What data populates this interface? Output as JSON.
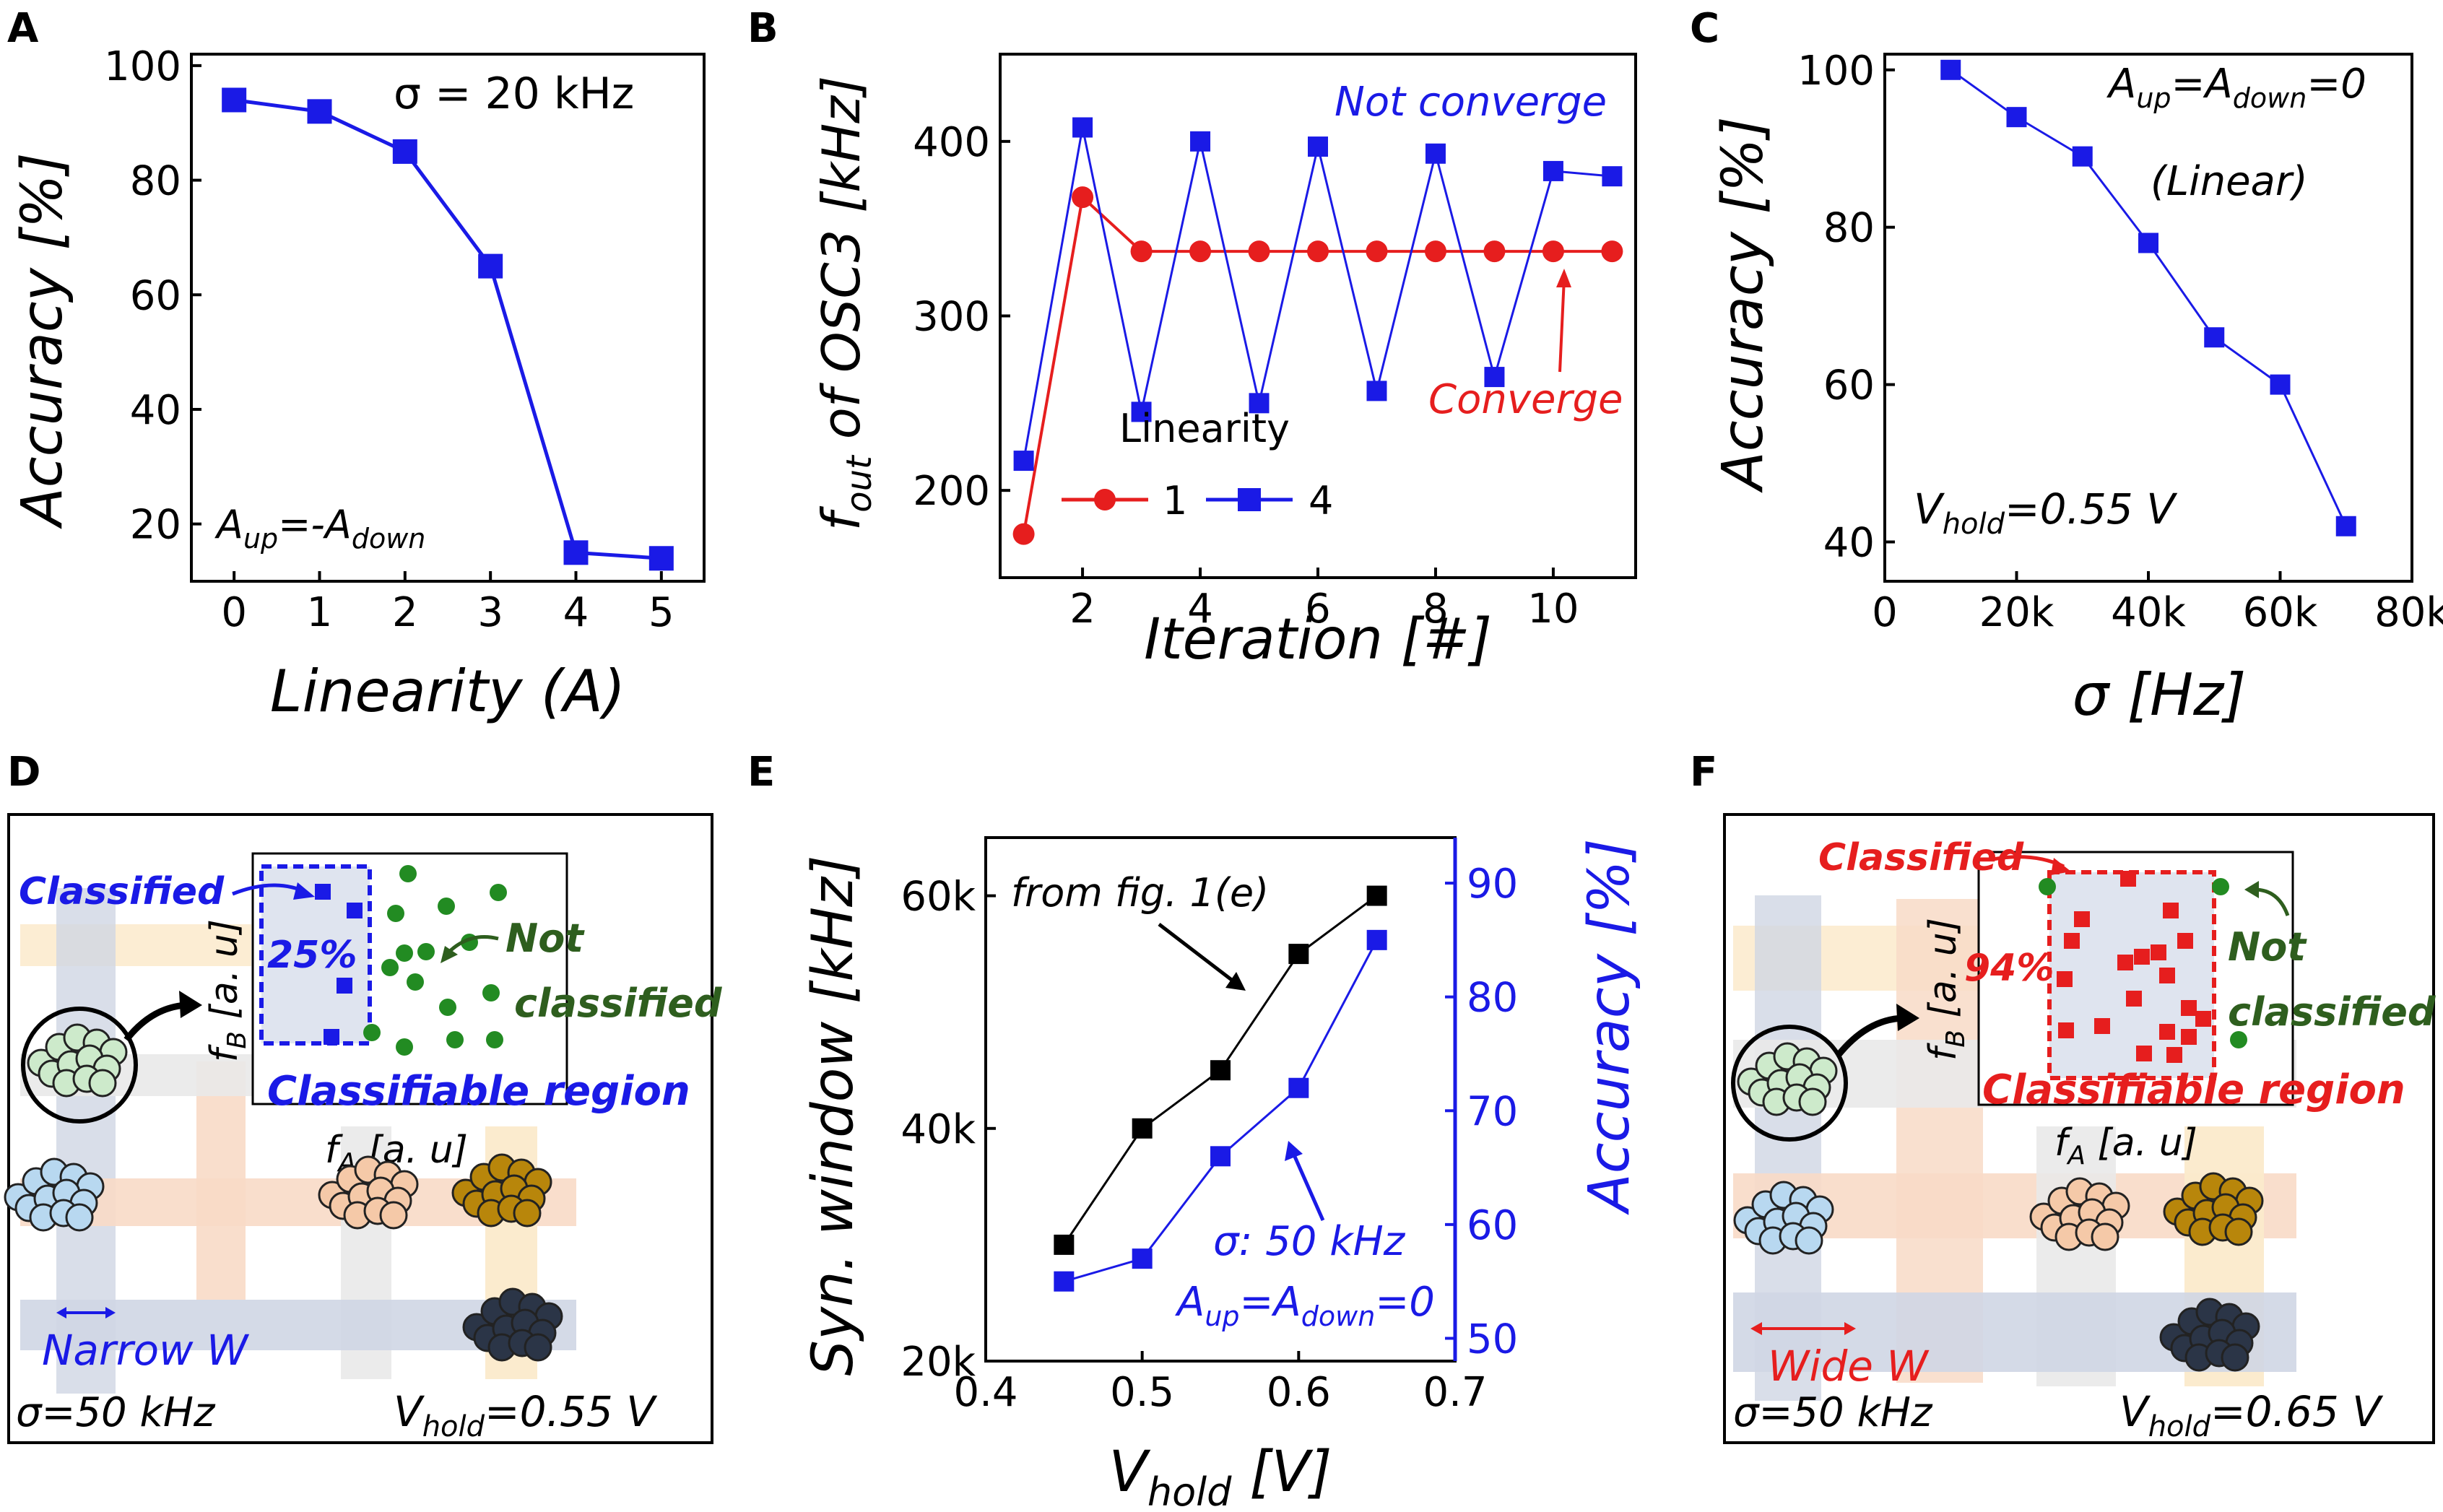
{
  "panels": {
    "a": {
      "letter": "A",
      "note": "σ = 20 kHz",
      "cond_main": "A",
      "cond_sub1": "up",
      "cond_mid": "=-A",
      "cond_sub2": "down"
    },
    "b": {
      "letter": "B",
      "not_converge": "Not converge",
      "converge": "Converge",
      "legend_title": "Linearity",
      "legend_1": "1",
      "legend_4": "4",
      "ylabel_main": "f",
      "ylabel_sub": "out",
      "ylabel_rest": " of OSC3 [kHz]"
    },
    "c": {
      "letter": "C",
      "cond_main": "A",
      "cond_sub1": "up",
      "cond_mid": "=A",
      "cond_sub2": "down",
      "cond_end": "=0",
      "linear": "(Linear)",
      "vhold_main": "V",
      "vhold_sub": "hold",
      "vhold_rest": "=0.55 V"
    },
    "d": {
      "letter": "D",
      "classified": "Classified",
      "percent": "25%",
      "not_classified_1": "Not",
      "not_classified_2": "classified",
      "region": "Classifiable region",
      "fb_main": "f",
      "fb_sub": "B",
      "fb_rest": " [a. u]",
      "fa_main": "f",
      "fa_sub": "A",
      "fa_rest": " [a. u]",
      "width": "Narrow W",
      "sigma": "σ=50 kHz",
      "vhold_main": "V",
      "vhold_sub": "hold",
      "vhold_rest": "=0.55 V"
    },
    "e": {
      "letter": "E",
      "from_fig": "from fig. 1(e)",
      "sigma": "σ: 50 kHz",
      "cond_main": "A",
      "cond_sub1": "up",
      "cond_mid": "=A",
      "cond_sub2": "down",
      "cond_end": "=0",
      "xlabel_main": "V",
      "xlabel_sub": "hold",
      "xlabel_rest": " [V]"
    },
    "f": {
      "letter": "F",
      "classified": "Classified",
      "percent": "94%",
      "not_classified_1": "Not",
      "not_classified_2": "classified",
      "region": "Classifiable region",
      "fb_main": "f",
      "fb_sub": "B",
      "fb_rest": " [a. u]",
      "fa_main": "f",
      "fa_sub": "A",
      "fa_rest": " [a. u]",
      "width": "Wide W",
      "sigma": "σ=50 kHz",
      "vhold_main": "V",
      "vhold_sub": "hold",
      "vhold_rest": "=0.65 V"
    }
  },
  "colors": {
    "blue": "#1a1ae6",
    "red": "#e61e1e",
    "green": "#228b22",
    "dark_green": "#2e5e1e",
    "black": "#000000",
    "blue_cluster": "#b8d8f0",
    "peach_cluster": "#f5c9a8",
    "gold_cluster": "#b8860b",
    "navy_cluster": "#2b3547",
    "mint_cluster": "#cdeacb"
  },
  "chart_data": [
    {
      "type": "line",
      "id": "A",
      "title": "",
      "xlabel": "Linearity (A)",
      "ylabel": "Accuracy [%]",
      "x": [
        0,
        1,
        2,
        3,
        4,
        5
      ],
      "series": [
        {
          "name": "σ = 20 kHz",
          "values": [
            94,
            92,
            85,
            65,
            15,
            14
          ]
        }
      ],
      "xlim": [
        -0.5,
        5.5
      ],
      "ylim": [
        10,
        102
      ],
      "xticks": [
        "0",
        "1",
        "2",
        "3",
        "4",
        "5"
      ],
      "yticks": [
        "20",
        "40",
        "60",
        "80",
        "100"
      ],
      "ytick_values": [
        20,
        40,
        60,
        80,
        100
      ]
    },
    {
      "type": "line",
      "id": "B",
      "title": "",
      "xlabel": "Iteration [#]",
      "ylabel": "f_out of OSC3 [kHz]",
      "x": [
        1,
        2,
        3,
        4,
        5,
        6,
        7,
        8,
        9,
        10,
        11
      ],
      "series": [
        {
          "name": "1",
          "values": [
            175,
            368,
            337,
            337,
            337,
            337,
            337,
            337,
            337,
            337,
            337
          ]
        },
        {
          "name": "4",
          "values": [
            217,
            408,
            245,
            400,
            250,
            397,
            257,
            393,
            265,
            383,
            380
          ]
        }
      ],
      "xlim": [
        0.6,
        11.4
      ],
      "ylim": [
        150,
        450
      ],
      "xticks": [
        "2",
        "4",
        "6",
        "8",
        "10"
      ],
      "xtick_values": [
        2,
        4,
        6,
        8,
        10
      ],
      "yticks": [
        "200",
        "300",
        "400"
      ],
      "ytick_values": [
        200,
        300,
        400
      ]
    },
    {
      "type": "line",
      "id": "C",
      "title": "",
      "xlabel": "σ [Hz]",
      "ylabel": "Accuracy [%]",
      "x": [
        10000,
        20000,
        30000,
        40000,
        50000,
        60000,
        70000
      ],
      "series": [
        {
          "name": "linear",
          "values": [
            100,
            94,
            89,
            78,
            66,
            60,
            42
          ]
        }
      ],
      "xlim": [
        0,
        80000
      ],
      "ylim": [
        35,
        102
      ],
      "xticks": [
        "0",
        "20k",
        "40k",
        "60k",
        "80k"
      ],
      "xtick_values": [
        0,
        20000,
        40000,
        60000,
        80000
      ],
      "yticks": [
        "40",
        "60",
        "80",
        "100"
      ],
      "ytick_values": [
        40,
        60,
        80,
        100
      ]
    },
    {
      "type": "line",
      "id": "E",
      "title": "",
      "xlabel": "V_hold [V]",
      "ylabel": "Syn. window [kHz]",
      "y2label": "Accuracy [%]",
      "x": [
        0.45,
        0.5,
        0.55,
        0.6,
        0.65
      ],
      "series": [
        {
          "name": "Syn. window",
          "axis": "left",
          "values": [
            30000,
            40000,
            45000,
            55000,
            60000
          ]
        },
        {
          "name": "Accuracy",
          "axis": "right",
          "values": [
            55,
            57,
            66,
            72,
            85
          ]
        }
      ],
      "xlim": [
        0.4,
        0.7
      ],
      "ylim": [
        20000,
        65000
      ],
      "y2lim": [
        48,
        94
      ],
      "xticks": [
        "0.4",
        "0.5",
        "0.6",
        "0.7"
      ],
      "xtick_values": [
        0.4,
        0.5,
        0.6,
        0.7
      ],
      "yticks": [
        "20k",
        "40k",
        "60k"
      ],
      "ytick_values": [
        20000,
        40000,
        60000
      ],
      "y2ticks": [
        "50",
        "60",
        "70",
        "80",
        "90"
      ],
      "y2tick_values": [
        50,
        60,
        70,
        80,
        90
      ]
    }
  ]
}
